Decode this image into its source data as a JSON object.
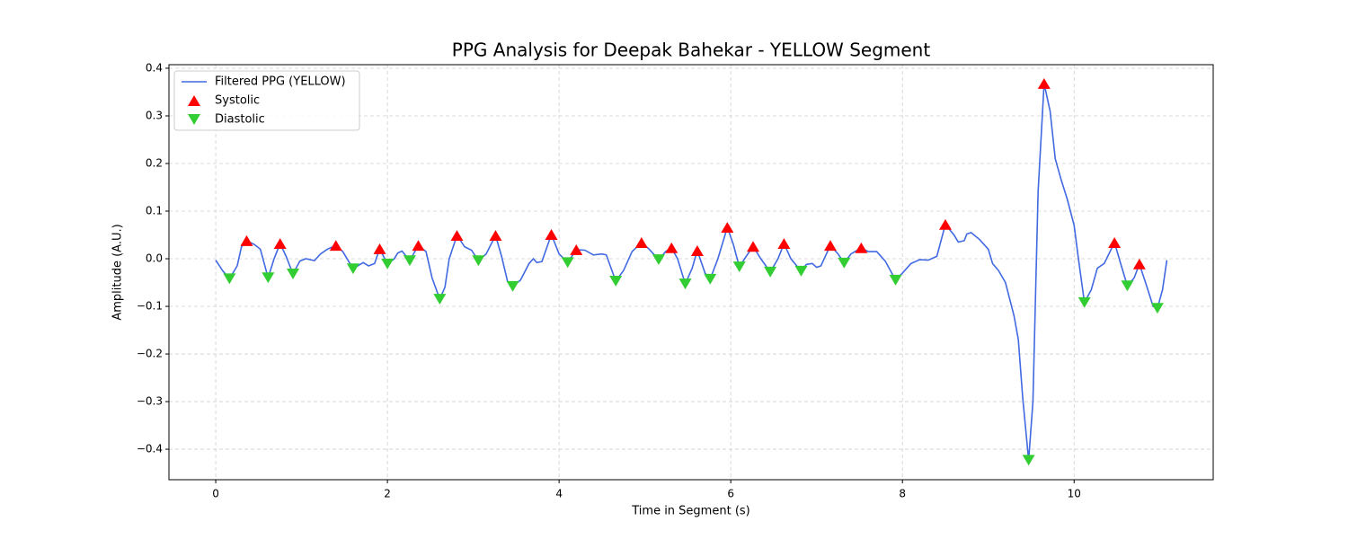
{
  "chart_data": {
    "type": "line",
    "title": "PPG Analysis for Deepak Bahekar - YELLOW Segment",
    "x_label": "Time in Segment (s)",
    "y_label": "Amplitude (A.U.)",
    "xlim": [
      -0.545,
      11.62
    ],
    "ylim": [
      -0.464,
      0.4075
    ],
    "xticks": [
      0,
      2,
      4,
      6,
      8,
      10
    ],
    "yticks": [
      {
        "value": -0.4,
        "label": "−0.4"
      },
      {
        "value": -0.3,
        "label": "−0.3"
      },
      {
        "value": -0.2,
        "label": "−0.2"
      },
      {
        "value": -0.1,
        "label": "−0.1"
      },
      {
        "value": 0,
        "label": "0.0"
      },
      0.1,
      0.2,
      0.3,
      0.4
    ],
    "grid": true,
    "legend": "upper left",
    "series": [
      {
        "name": "Filtered PPG (YELLOW)",
        "type": "line",
        "color": "#4169e1",
        "x": [
          0,
          0.08,
          0.16,
          0.25,
          0.3,
          0.36,
          0.45,
          0.52,
          0.61,
          0.68,
          0.75,
          0.82,
          0.9,
          0.98,
          1.05,
          1.15,
          1.22,
          1.3,
          1.4,
          1.48,
          1.6,
          1.68,
          1.72,
          1.78,
          1.85,
          1.91,
          2.0,
          2.08,
          2.12,
          2.17,
          2.26,
          2.36,
          2.45,
          2.52,
          2.61,
          2.67,
          2.72,
          2.81,
          2.9,
          2.98,
          3.06,
          3.15,
          3.26,
          3.33,
          3.4,
          3.46,
          3.55,
          3.65,
          3.7,
          3.74,
          3.8,
          3.91,
          4.0,
          4.1,
          4.2,
          4.3,
          4.4,
          4.5,
          4.55,
          4.66,
          4.75,
          4.85,
          4.96,
          5.05,
          5.16,
          5.24,
          5.31,
          5.38,
          5.47,
          5.55,
          5.61,
          5.7,
          5.76,
          5.85,
          5.96,
          6.03,
          6.1,
          6.18,
          6.26,
          6.35,
          6.46,
          6.55,
          6.62,
          6.7,
          6.82,
          6.88,
          6.95,
          7.0,
          7.05,
          7.16,
          7.25,
          7.32,
          7.4,
          7.52,
          7.6,
          7.7,
          7.8,
          7.92,
          8.0,
          8.1,
          8.2,
          8.3,
          8.4,
          8.5,
          8.6,
          8.65,
          8.72,
          8.75,
          8.8,
          8.9,
          9.0,
          9.05,
          9.12,
          9.2,
          9.3,
          9.35,
          9.4,
          9.47,
          9.52,
          9.58,
          9.65,
          9.72,
          9.78,
          9.85,
          9.92,
          10.0,
          10.05,
          10.12,
          10.2,
          10.27,
          10.35,
          10.47,
          10.55,
          10.62,
          10.7,
          10.76,
          10.85,
          10.92,
          10.97,
          11.03,
          11.08
        ],
        "values": [
          -0.003,
          -0.025,
          -0.042,
          -0.015,
          0.025,
          0.038,
          0.03,
          0.02,
          -0.04,
          0.0,
          0.032,
          0.005,
          -0.032,
          -0.005,
          0.0,
          -0.004,
          0.01,
          0.02,
          0.028,
          0.015,
          -0.021,
          -0.012,
          -0.008,
          -0.015,
          -0.01,
          0.021,
          -0.011,
          0.0,
          0.012,
          0.016,
          -0.004,
          0.028,
          0.015,
          -0.04,
          -0.085,
          -0.06,
          0.0,
          0.049,
          0.025,
          0.018,
          -0.004,
          0.01,
          0.049,
          0.005,
          -0.048,
          -0.058,
          -0.045,
          -0.01,
          0.0,
          -0.008,
          -0.006,
          0.051,
          0.01,
          -0.008,
          0.019,
          0.018,
          0.008,
          0.01,
          0.008,
          -0.047,
          -0.025,
          0.015,
          0.034,
          0.02,
          -0.002,
          0.015,
          0.023,
          0.0,
          -0.053,
          -0.02,
          0.017,
          -0.03,
          -0.043,
          0.0,
          0.066,
          0.03,
          -0.017,
          0.005,
          0.026,
          0.0,
          -0.028,
          0.0,
          0.032,
          0.0,
          -0.026,
          -0.012,
          -0.01,
          -0.018,
          -0.015,
          0.028,
          0.01,
          -0.009,
          0.01,
          0.023,
          0.015,
          0.015,
          -0.005,
          -0.045,
          -0.03,
          -0.01,
          -0.002,
          -0.003,
          0.005,
          0.072,
          0.05,
          0.035,
          0.038,
          0.052,
          0.055,
          0.04,
          0.02,
          -0.01,
          -0.025,
          -0.05,
          -0.12,
          -0.17,
          -0.29,
          -0.423,
          -0.3,
          0.14,
          0.368,
          0.31,
          0.21,
          0.165,
          0.125,
          0.07,
          0.0,
          -0.092,
          -0.065,
          -0.02,
          -0.01,
          0.034,
          -0.015,
          -0.057,
          -0.04,
          -0.011,
          -0.06,
          -0.1,
          -0.104,
          -0.065,
          -0.003
        ]
      },
      {
        "name": "Systolic",
        "type": "scatter",
        "marker": "triangle-up",
        "color": "#ff0000",
        "x": [
          0.36,
          0.75,
          1.4,
          1.91,
          2.36,
          2.81,
          3.26,
          3.91,
          4.2,
          4.96,
          5.31,
          5.61,
          5.96,
          6.26,
          6.62,
          7.16,
          7.52,
          8.5,
          9.65,
          10.47,
          10.76
        ],
        "values": [
          0.038,
          0.032,
          0.028,
          0.021,
          0.028,
          0.049,
          0.049,
          0.051,
          0.019,
          0.034,
          0.023,
          0.017,
          0.066,
          0.026,
          0.032,
          0.028,
          0.023,
          0.072,
          0.368,
          0.034,
          -0.011
        ]
      },
      {
        "name": "Diastolic",
        "type": "scatter",
        "marker": "triangle-down",
        "color": "#32cd32",
        "x": [
          0.16,
          0.61,
          0.9,
          1.6,
          2.0,
          2.26,
          2.61,
          3.06,
          3.46,
          4.1,
          4.66,
          5.16,
          5.47,
          5.76,
          6.1,
          6.46,
          6.82,
          7.32,
          7.92,
          9.47,
          10.12,
          10.62,
          10.97
        ],
        "values": [
          -0.042,
          -0.04,
          -0.032,
          -0.021,
          -0.011,
          -0.004,
          -0.085,
          -0.004,
          -0.058,
          -0.008,
          -0.047,
          -0.002,
          -0.053,
          -0.043,
          -0.017,
          -0.028,
          -0.026,
          -0.009,
          -0.045,
          -0.423,
          -0.092,
          -0.057,
          -0.104
        ]
      }
    ]
  }
}
